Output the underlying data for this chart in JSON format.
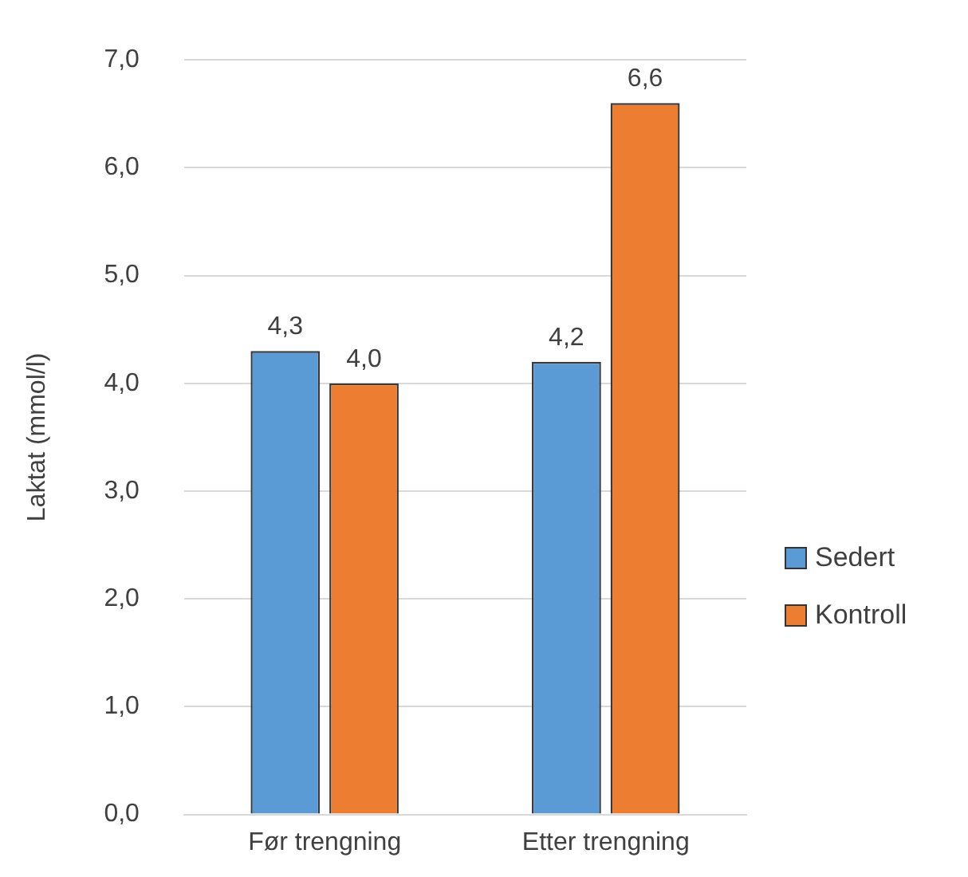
{
  "chart_data": {
    "type": "bar",
    "ylabel": "Laktat (mmol/l)",
    "categories": [
      "Før trengning",
      "Etter trengning"
    ],
    "series": [
      {
        "name": "Sedert",
        "color": "#5b9bd5",
        "values": [
          4.3,
          4.2
        ],
        "value_labels": [
          "4,3",
          "4,2"
        ]
      },
      {
        "name": "Kontroll",
        "color": "#ed7d31",
        "values": [
          4.0,
          6.6
        ],
        "value_labels": [
          "4,0",
          "6,6"
        ]
      }
    ],
    "ylim": [
      0,
      7
    ],
    "yticks": [
      {
        "value": 0,
        "label": "0,0"
      },
      {
        "value": 1,
        "label": "1,0"
      },
      {
        "value": 2,
        "label": "2,0"
      },
      {
        "value": 3,
        "label": "3,0"
      },
      {
        "value": 4,
        "label": "4,0"
      },
      {
        "value": 5,
        "label": "5,0"
      },
      {
        "value": 6,
        "label": "6,0"
      },
      {
        "value": 7,
        "label": "7,0"
      }
    ],
    "grid": "y",
    "legend": "right"
  }
}
